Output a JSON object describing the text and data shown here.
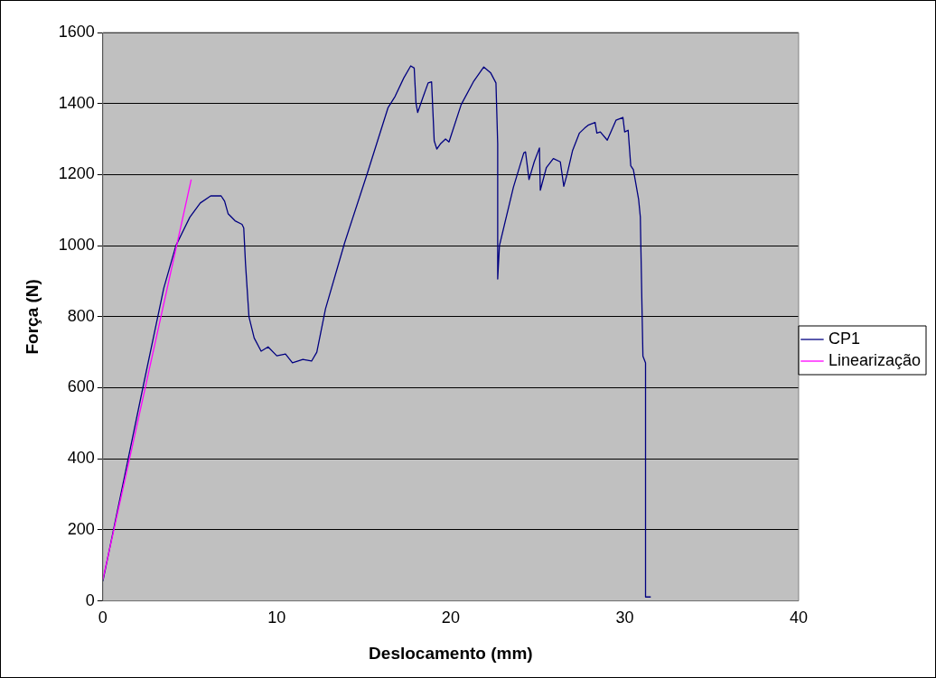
{
  "chart_data": {
    "type": "line",
    "xlabel": "Deslocamento (mm)",
    "ylabel": "Força (N)",
    "xlim": [
      0,
      40
    ],
    "xticks": [
      0,
      10,
      20,
      30,
      40
    ],
    "ylim": [
      0,
      1600
    ],
    "yticks": [
      0,
      200,
      400,
      600,
      800,
      1000,
      1200,
      1400,
      1600
    ],
    "grid": "y",
    "legend": "right",
    "marker": "none",
    "line_style": "solid",
    "series": [
      {
        "name": "CP1",
        "color": "#000080",
        "x": [
          0,
          2.3,
          3.5,
          4.2,
          5,
          5.6,
          6.2,
          6.8,
          7.0,
          7.2,
          7.6,
          8.0,
          8.1,
          8.2,
          8.4,
          8.7,
          9.1,
          9.5,
          10.0,
          10.5,
          10.9,
          11.5,
          12.0,
          12.3,
          12.8,
          13.9,
          15.2,
          16.4,
          16.8,
          17.3,
          17.7,
          17.9,
          18.0,
          18.1,
          18.4,
          18.7,
          18.9,
          19.05,
          19.2,
          19.4,
          19.7,
          19.9,
          20.6,
          21.3,
          21.9,
          22.3,
          22.6,
          22.7,
          22.7,
          22.8,
          23.6,
          24.2,
          24.3,
          24.5,
          24.8,
          25.1,
          25.15,
          25.5,
          25.9,
          26.3,
          26.5,
          26.7,
          27.0,
          27.4,
          27.7,
          27.9,
          28.3,
          28.4,
          28.6,
          29.0,
          29.5,
          29.9,
          30.0,
          30.2,
          30.35,
          30.5,
          30.8,
          30.9,
          31.0,
          31.05,
          31.2,
          31.2,
          31.5
        ],
        "values": [
          55,
          600,
          880,
          1000,
          1080,
          1120,
          1140,
          1140,
          1125,
          1090,
          1070,
          1060,
          1050,
          950,
          800,
          740,
          703,
          715,
          690,
          695,
          670,
          680,
          675,
          700,
          822,
          1008,
          1203,
          1389,
          1420,
          1472,
          1506,
          1500,
          1403,
          1375,
          1417,
          1458,
          1461,
          1295,
          1272,
          1286,
          1300,
          1292,
          1397,
          1461,
          1503,
          1486,
          1458,
          1286,
          906,
          1000,
          1164,
          1261,
          1264,
          1186,
          1236,
          1275,
          1156,
          1220,
          1245,
          1236,
          1167,
          1203,
          1267,
          1317,
          1331,
          1339,
          1347,
          1317,
          1320,
          1297,
          1353,
          1361,
          1320,
          1325,
          1225,
          1214,
          1131,
          1081,
          814,
          689,
          670,
          11,
          11
        ]
      },
      {
        "name": "Linearização",
        "color": "#ff00ff",
        "x": [
          0,
          5.08
        ],
        "values": [
          60,
          1186
        ]
      }
    ]
  }
}
